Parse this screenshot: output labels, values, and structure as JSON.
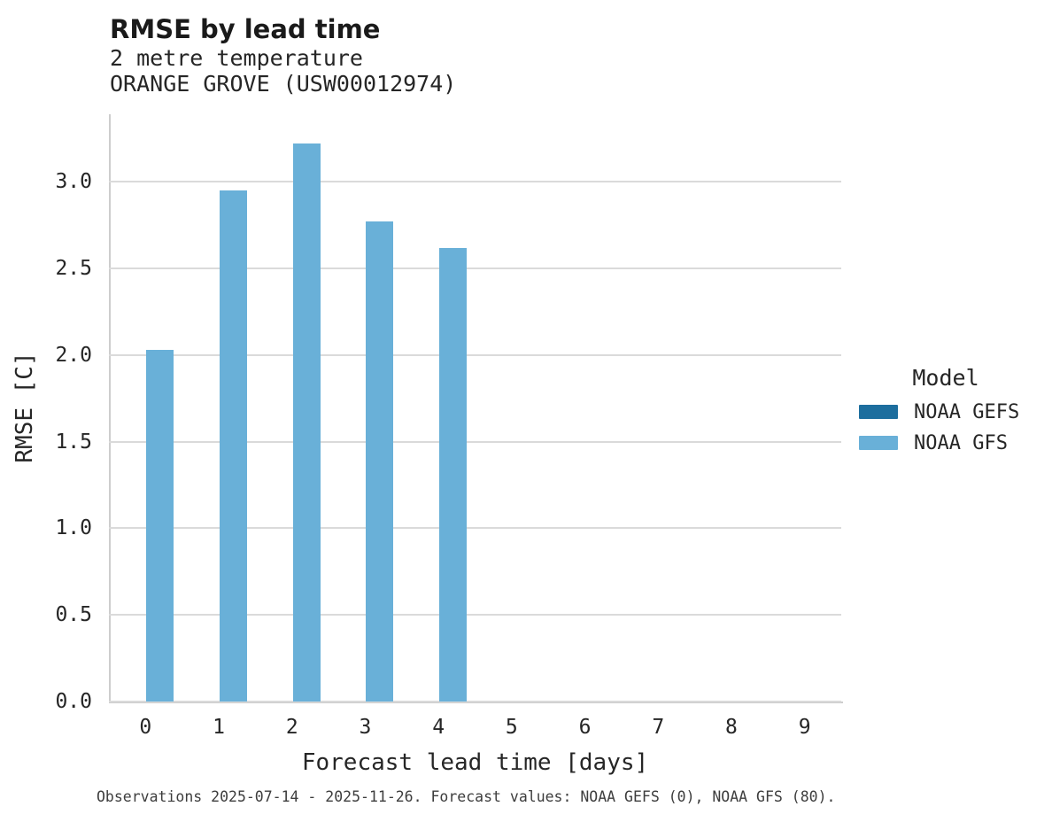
{
  "header": {
    "title": "RMSE by lead time",
    "subtitle_line1": "2 metre temperature",
    "subtitle_line2": "ORANGE GROVE (USW00012974)"
  },
  "chart_data": {
    "type": "bar",
    "title": "RMSE by lead time",
    "subtitle": [
      "2 metre temperature",
      "ORANGE GROVE (USW00012974)"
    ],
    "categories": [
      "0",
      "1",
      "2",
      "3",
      "4",
      "5",
      "6",
      "7",
      "8",
      "9"
    ],
    "series": [
      {
        "name": "NOAA GEFS",
        "color": "#1d6e9e",
        "values": [
          null,
          null,
          null,
          null,
          null,
          null,
          null,
          null,
          null,
          null
        ]
      },
      {
        "name": "NOAA GFS",
        "color": "#69b0d8",
        "values": [
          2.03,
          2.95,
          3.22,
          2.77,
          2.62,
          null,
          null,
          null,
          null,
          null
        ]
      }
    ],
    "xlabel": "Forecast lead time [days]",
    "ylabel": "RMSE [C]",
    "ylim": [
      0,
      3.39
    ],
    "yticks": [
      0.0,
      0.5,
      1.0,
      1.5,
      2.0,
      2.5,
      3.0
    ],
    "grid": true,
    "legend_title": "Model",
    "legend_position": "right"
  },
  "footer": {
    "text": "Observations 2025-07-14 - 2025-11-26. Forecast values: NOAA GEFS (0), NOAA GFS (80)."
  }
}
